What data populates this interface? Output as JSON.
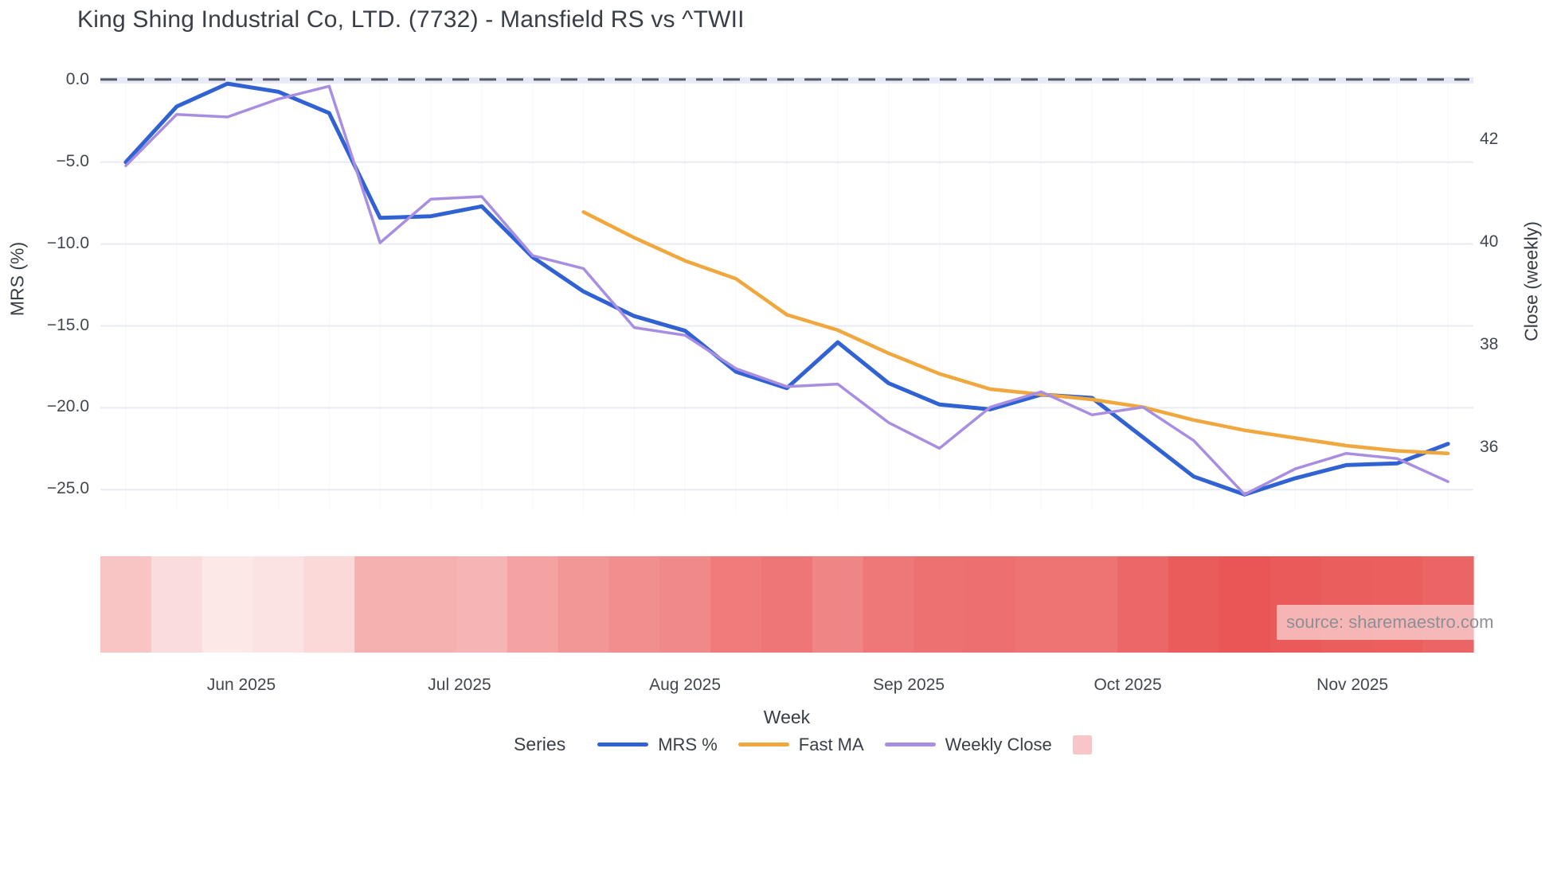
{
  "page": {
    "title": "King Shing Industrial Co, LTD. (7732) - Mansfield RS vs ^TWII"
  },
  "source_label": "source: sharemaestro.com",
  "colors": {
    "mrs": "#3062d4",
    "fast_ma": "#efa73e",
    "weekly_close": "#a88ee0",
    "heatmap_swatch": "#f9c6c8",
    "zero_line": "#515868",
    "gridline": "#e9ebf2",
    "heatmap_ramp_light": "#fdeaea",
    "heatmap_ramp_dark": "#e95050"
  },
  "legend": {
    "title": "Series",
    "items": [
      {
        "label": "MRS %",
        "color": "#3062d4",
        "type": "line"
      },
      {
        "label": "Fast MA",
        "color": "#efa73e",
        "type": "line"
      },
      {
        "label": "Weekly Close",
        "color": "#a88ee0",
        "type": "line"
      },
      {
        "label": "",
        "color": "#f9c6c8",
        "type": "square"
      }
    ]
  },
  "chart_data": {
    "type": "line",
    "title": "King Shing Industrial Co, LTD. (7732) - Mansfield RS vs ^TWII",
    "weeks": 27,
    "x_axis": {
      "title": "Week",
      "ticks": [
        {
          "label": "Jun 2025",
          "f": 0.1027
        },
        {
          "label": "Jul 2025",
          "f": 0.2616
        },
        {
          "label": "Aug 2025",
          "f": 0.4258
        },
        {
          "label": "Sep 2025",
          "f": 0.5888
        },
        {
          "label": "Oct 2025",
          "f": 0.7483
        },
        {
          "label": "Nov 2025",
          "f": 0.9119
        }
      ]
    },
    "y_left_axis": {
      "title": "MRS (%)",
      "range": [
        0.24,
        -26.3
      ],
      "ticks": [
        {
          "label": "0.0",
          "v": 0
        },
        {
          "label": "−5.0",
          "v": -5
        },
        {
          "label": "−10.0",
          "v": -10
        },
        {
          "label": "−15.0",
          "v": -15
        },
        {
          "label": "−20.0",
          "v": -20
        },
        {
          "label": "−25.0",
          "v": -25
        }
      ]
    },
    "y_right_axis": {
      "title": "Close (weekly)",
      "range": [
        43.24,
        34.78
      ],
      "ticks": [
        {
          "label": "42",
          "v": 42
        },
        {
          "label": "40",
          "v": 40
        },
        {
          "label": "38",
          "v": 38
        },
        {
          "label": "36",
          "v": 36
        }
      ]
    },
    "zero_reference_line": {
      "value": 0,
      "style": "dashed"
    },
    "series": [
      {
        "name": "MRS %",
        "axis": "left",
        "color": "#3062d4",
        "width": 5,
        "values": [
          -5.0,
          -1.6,
          -0.2,
          -0.7,
          -2.0,
          -8.4,
          -8.3,
          -7.7,
          -10.8,
          -12.9,
          -14.4,
          -15.3,
          -17.8,
          -18.8,
          -16.0,
          -18.5,
          -19.8,
          -20.1,
          -19.2,
          -19.4,
          -21.8,
          -24.2,
          -25.3,
          -24.3,
          -23.5,
          -23.4,
          -22.2
        ]
      },
      {
        "name": "Fast MA",
        "axis": "right",
        "color": "#efa73e",
        "width": 4.5,
        "values": [
          null,
          null,
          null,
          null,
          null,
          null,
          null,
          null,
          null,
          40.6,
          40.1,
          39.65,
          39.3,
          38.6,
          38.3,
          37.85,
          37.45,
          37.15,
          37.05,
          36.95,
          36.8,
          36.55,
          36.35,
          36.2,
          36.05,
          35.95,
          35.9
        ]
      },
      {
        "name": "Weekly Close",
        "axis": "right",
        "color": "#a88ee0",
        "width": 3.5,
        "values": [
          41.5,
          42.5,
          42.45,
          42.8,
          43.05,
          40.0,
          40.85,
          40.9,
          39.75,
          39.5,
          38.35,
          38.2,
          37.55,
          37.2,
          37.25,
          36.5,
          36.0,
          36.8,
          37.1,
          36.65,
          36.8,
          36.15,
          35.1,
          35.6,
          35.9,
          35.8,
          35.35
        ]
      }
    ],
    "heatmap": {
      "encodes": "MRS %",
      "ramp": [
        "#fdeaea",
        "#e95050"
      ],
      "domain": [
        0,
        -26.3
      ],
      "values": [
        -5.0,
        -1.6,
        -0.2,
        -0.7,
        -2.0,
        -8.4,
        -8.3,
        -7.7,
        -10.8,
        -12.9,
        -14.4,
        -15.3,
        -17.8,
        -18.8,
        -16.0,
        -18.5,
        -19.8,
        -20.1,
        -19.2,
        -19.4,
        -21.8,
        -24.2,
        -25.3,
        -24.3,
        -23.5,
        -23.4,
        -22.2
      ]
    }
  }
}
